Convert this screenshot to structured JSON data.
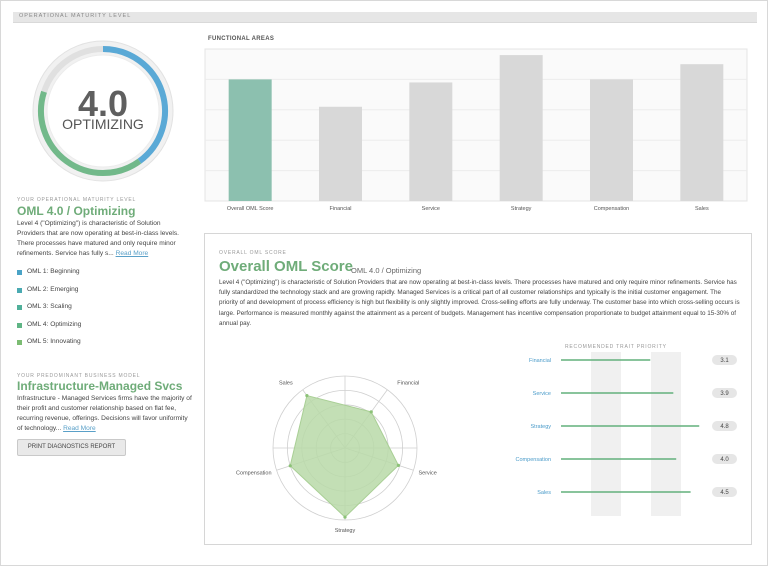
{
  "header": {
    "title": "OPERATIONAL MATURITY LEVEL"
  },
  "gauge": {
    "value": "4.0",
    "label": "OPTIMIZING",
    "level_fraction": 0.8,
    "colors": {
      "blue": "#5aa9d6",
      "green": "#72b98a",
      "track": "#e0e0e0"
    }
  },
  "maturity": {
    "small_label": "YOUR OPERATIONAL MATURITY LEVEL",
    "title": "OML 4.0 / Optimizing",
    "body": "Level 4 (\"Optimizing\") is characteristic of Solution Providers that are now operating at best-in-class levels. There processes have matured and only require minor refinements. Service has fully s...",
    "read_more": "Read More"
  },
  "levels": [
    {
      "label": "OML 1: Beginning",
      "color": "#4aa3c6"
    },
    {
      "label": "OML 2: Emerging",
      "color": "#4aaab2"
    },
    {
      "label": "OML 3: Scaling",
      "color": "#50b09a"
    },
    {
      "label": "OML 4: Optimizing",
      "color": "#5fb585"
    },
    {
      "label": "OML 5: Innovating",
      "color": "#7cbc73"
    }
  ],
  "business_model": {
    "small_label": "YOUR PREDOMINANT BUSINESS MODEL",
    "title": "Infrastructure-Managed Svcs",
    "body": "Infrastructure - Managed Services firms have the majority of their profit and customer relationship based on flat fee, recurring revenue, offerings. Decisions will favor uniformity of technology...",
    "read_more": "Read More",
    "button": "PRINT DIAGNOSTICS REPORT"
  },
  "functional_areas": {
    "title": "FUNCTIONAL AREAS",
    "bars": [
      {
        "label": "Overall OML Score",
        "value": 4.0,
        "highlight": true
      },
      {
        "label": "Financial",
        "value": 3.1,
        "highlight": false
      },
      {
        "label": "Service",
        "value": 3.9,
        "highlight": false
      },
      {
        "label": "Strategy",
        "value": 4.8,
        "highlight": false
      },
      {
        "label": "Compensation",
        "value": 4.0,
        "highlight": false
      },
      {
        "label": "Sales",
        "value": 4.5,
        "highlight": false
      }
    ],
    "max": 5,
    "colors": {
      "highlight": "#8cc0af",
      "normal": "#d8d8d8"
    }
  },
  "overall": {
    "small_label": "OVERALL OML SCORE",
    "title": "Overall OML Score",
    "subtitle": "OML 4.0 / Optimizing",
    "body": "Level 4 (\"Optimizing\") is characteristic of Solution Providers that are now operating at best-in-class levels. There processes have matured and only require minor refinements. Service has fully standardized the technology stack and are growing rapidly. Managed Services is a critical part of all customer relationships and typically is the initial customer engagement. The priority of and development of process efficiency is high but flexibility is only slightly improved. Cross-selling efforts are fully underway. The customer base into which cross-selling occurs is large. Performance is measured monthly against the attainment as a percent of budgets. Management has incentive compensation proportionate to budget attainment equal to 15-30% of annual pay."
  },
  "radar": {
    "axes": [
      "Financial",
      "Service",
      "Strategy",
      "Compensation",
      "Sales"
    ],
    "values": [
      3.1,
      3.9,
      4.8,
      4.0,
      4.5
    ],
    "max": 5,
    "fill": "#b9d9a8"
  },
  "traits": {
    "title": "RECOMMENDED TRAIT PRIORITY",
    "items": [
      {
        "label": "Financial",
        "value": "3.1",
        "fraction": 0.62
      },
      {
        "label": "Service",
        "value": "3.9",
        "fraction": 0.78
      },
      {
        "label": "Strategy",
        "value": "4.8",
        "fraction": 0.96
      },
      {
        "label": "Compensation",
        "value": "4.0",
        "fraction": 0.8
      },
      {
        "label": "Sales",
        "value": "4.5",
        "fraction": 0.9
      }
    ],
    "line_color": "#62b07c",
    "label_color": "#4a9bc9"
  }
}
